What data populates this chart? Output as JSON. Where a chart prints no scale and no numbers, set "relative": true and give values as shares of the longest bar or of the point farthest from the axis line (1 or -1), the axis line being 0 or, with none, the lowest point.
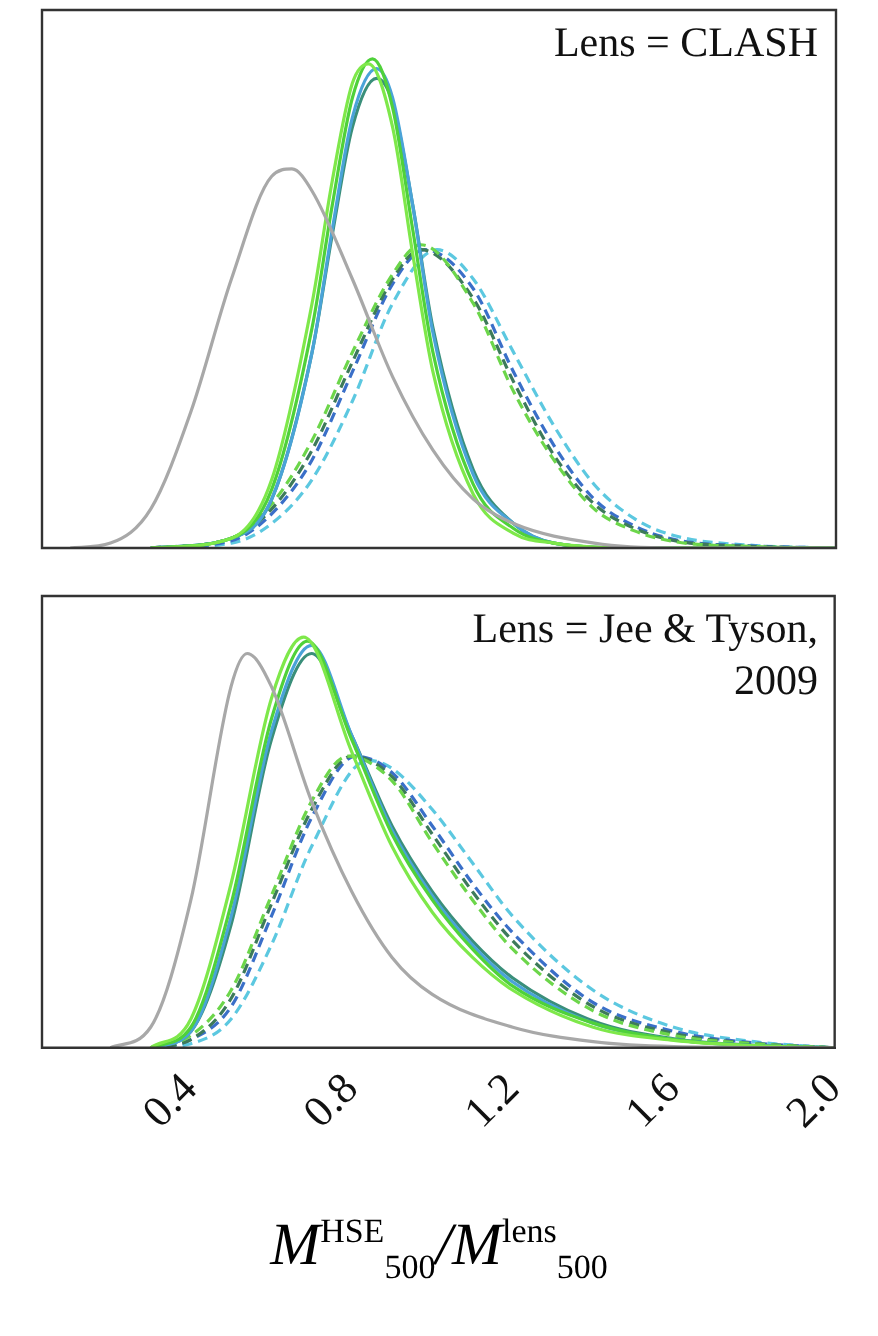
{
  "chart_data": [
    {
      "type": "line",
      "relative": true,
      "annotations": [
        "Lens = CLASH"
      ],
      "xlim": [
        0.03,
        2.0
      ],
      "tick_labels": false,
      "grid": false,
      "legend": false,
      "marker": "none",
      "series": [
        {
          "color": "#a8a8a8",
          "line_style": "solid",
          "x": [
            0.1,
            0.2,
            0.3,
            0.4,
            0.5,
            0.6,
            0.65,
            0.7,
            0.8,
            0.9,
            1.0,
            1.1,
            1.2,
            1.4,
            1.6,
            2.0
          ],
          "values": [
            0,
            0.01,
            0.08,
            0.28,
            0.55,
            0.76,
            0.775,
            0.73,
            0.55,
            0.35,
            0.2,
            0.1,
            0.05,
            0.01,
            0,
            0
          ]
        },
        {
          "color": "#7ee84a",
          "line_style": "solid",
          "x": [
            0.3,
            0.5,
            0.6,
            0.7,
            0.75,
            0.8,
            0.84,
            0.9,
            0.95,
            1.0,
            1.1,
            1.2,
            1.3,
            1.5,
            2.0
          ],
          "values": [
            0,
            0.02,
            0.14,
            0.5,
            0.75,
            0.95,
            0.99,
            0.86,
            0.6,
            0.36,
            0.11,
            0.03,
            0.01,
            0,
            0
          ]
        },
        {
          "color": "#4fd13a",
          "line_style": "solid",
          "x": [
            0.3,
            0.5,
            0.6,
            0.7,
            0.75,
            0.8,
            0.85,
            0.9,
            0.95,
            1.0,
            1.1,
            1.2,
            1.3,
            1.5,
            2.0
          ],
          "values": [
            0,
            0.02,
            0.12,
            0.45,
            0.7,
            0.92,
            1.0,
            0.9,
            0.65,
            0.4,
            0.13,
            0.04,
            0.01,
            0,
            0
          ]
        },
        {
          "color": "#4aa3d8",
          "line_style": "solid",
          "x": [
            0.3,
            0.5,
            0.6,
            0.7,
            0.75,
            0.8,
            0.86,
            0.9,
            0.95,
            1.0,
            1.1,
            1.2,
            1.3,
            1.5,
            2.0
          ],
          "values": [
            0,
            0.02,
            0.1,
            0.4,
            0.65,
            0.88,
            0.98,
            0.92,
            0.7,
            0.44,
            0.15,
            0.05,
            0.01,
            0,
            0
          ]
        },
        {
          "color": "#3a8f7a",
          "line_style": "solid",
          "x": [
            0.3,
            0.5,
            0.6,
            0.7,
            0.75,
            0.8,
            0.86,
            0.9,
            0.95,
            1.0,
            1.1,
            1.2,
            1.3,
            1.5,
            2.0
          ],
          "values": [
            0,
            0.02,
            0.1,
            0.4,
            0.64,
            0.86,
            0.96,
            0.91,
            0.7,
            0.45,
            0.16,
            0.05,
            0.01,
            0,
            0
          ]
        },
        {
          "color": "#6cd64a",
          "line_style": "dashed",
          "x": [
            0.3,
            0.5,
            0.6,
            0.7,
            0.8,
            0.9,
            0.97,
            1.1,
            1.2,
            1.3,
            1.4,
            1.5,
            1.6,
            1.8,
            2.0
          ],
          "values": [
            0,
            0.02,
            0.09,
            0.22,
            0.4,
            0.56,
            0.62,
            0.5,
            0.32,
            0.18,
            0.08,
            0.035,
            0.013,
            0.003,
            0
          ]
        },
        {
          "color": "#3d7a5a",
          "line_style": "dashed",
          "x": [
            0.3,
            0.5,
            0.6,
            0.7,
            0.8,
            0.9,
            0.97,
            1.1,
            1.2,
            1.3,
            1.4,
            1.5,
            1.6,
            1.8,
            2.0
          ],
          "values": [
            0,
            0.02,
            0.08,
            0.2,
            0.38,
            0.55,
            0.61,
            0.51,
            0.34,
            0.19,
            0.09,
            0.04,
            0.015,
            0.003,
            0
          ]
        },
        {
          "color": "#3a6fc8",
          "line_style": "dashed",
          "x": [
            0.3,
            0.5,
            0.6,
            0.7,
            0.8,
            0.9,
            0.98,
            1.1,
            1.2,
            1.3,
            1.4,
            1.5,
            1.6,
            1.8,
            2.0
          ],
          "values": [
            0,
            0.015,
            0.07,
            0.18,
            0.36,
            0.54,
            0.61,
            0.53,
            0.36,
            0.21,
            0.1,
            0.045,
            0.017,
            0.004,
            0
          ]
        },
        {
          "color": "#5cc8e0",
          "line_style": "dashed",
          "x": [
            0.3,
            0.5,
            0.6,
            0.7,
            0.8,
            0.9,
            1.01,
            1.1,
            1.2,
            1.3,
            1.4,
            1.5,
            1.6,
            1.8,
            2.0
          ],
          "values": [
            0,
            0.01,
            0.05,
            0.14,
            0.3,
            0.5,
            0.61,
            0.55,
            0.4,
            0.25,
            0.13,
            0.06,
            0.025,
            0.005,
            0
          ]
        }
      ]
    },
    {
      "type": "line",
      "relative": true,
      "annotations": [
        "Lens = Jee & Tyson, 2009"
      ],
      "xlabel": "M$^{HSE}$$_{500}$/M$^{lens}$$_{500}$",
      "xlim": [
        0.03,
        2.0
      ],
      "xticks": [
        0.4,
        0.8,
        1.2,
        1.6,
        {
          "value": 2.0,
          "label": "2.0"
        }
      ],
      "tick_labels": "x",
      "grid": false,
      "legend": false,
      "marker": "none",
      "series": [
        {
          "color": "#a8a8a8",
          "line_style": "solid",
          "x": [
            0.2,
            0.3,
            0.4,
            0.5,
            0.54,
            0.6,
            0.7,
            0.8,
            0.9,
            1.0,
            1.2,
            1.4,
            1.6,
            2.0
          ],
          "values": [
            0,
            0.05,
            0.36,
            0.88,
            0.96,
            0.88,
            0.6,
            0.38,
            0.22,
            0.13,
            0.05,
            0.015,
            0.003,
            0
          ]
        },
        {
          "color": "#7ee84a",
          "line_style": "solid",
          "x": [
            0.3,
            0.4,
            0.5,
            0.6,
            0.68,
            0.8,
            0.9,
            1.0,
            1.1,
            1.2,
            1.4,
            1.6,
            1.8,
            2.0
          ],
          "values": [
            0,
            0.07,
            0.4,
            0.85,
            1.0,
            0.72,
            0.49,
            0.33,
            0.22,
            0.14,
            0.05,
            0.018,
            0.005,
            0
          ]
        },
        {
          "color": "#4fd13a",
          "line_style": "solid",
          "x": [
            0.3,
            0.4,
            0.5,
            0.6,
            0.69,
            0.8,
            0.9,
            1.0,
            1.1,
            1.2,
            1.4,
            1.6,
            1.8,
            2.0
          ],
          "values": [
            0,
            0.05,
            0.35,
            0.8,
            0.99,
            0.75,
            0.52,
            0.36,
            0.24,
            0.15,
            0.06,
            0.02,
            0.005,
            0
          ]
        },
        {
          "color": "#4aa3d8",
          "line_style": "solid",
          "x": [
            0.3,
            0.4,
            0.5,
            0.6,
            0.7,
            0.8,
            0.9,
            1.0,
            1.1,
            1.2,
            1.4,
            1.6,
            1.8,
            2.0
          ],
          "values": [
            0,
            0.04,
            0.32,
            0.77,
            0.98,
            0.76,
            0.53,
            0.37,
            0.25,
            0.16,
            0.06,
            0.02,
            0.005,
            0
          ]
        },
        {
          "color": "#3a8f7a",
          "line_style": "solid",
          "x": [
            0.3,
            0.4,
            0.5,
            0.6,
            0.7,
            0.8,
            0.9,
            1.0,
            1.1,
            1.2,
            1.4,
            1.6,
            1.8,
            2.0
          ],
          "values": [
            0,
            0.04,
            0.3,
            0.75,
            0.96,
            0.76,
            0.54,
            0.38,
            0.26,
            0.17,
            0.065,
            0.022,
            0.006,
            0
          ]
        },
        {
          "color": "#6cd64a",
          "line_style": "dashed",
          "x": [
            0.3,
            0.4,
            0.5,
            0.6,
            0.7,
            0.79,
            0.9,
            1.0,
            1.1,
            1.2,
            1.4,
            1.6,
            1.8,
            2.0
          ],
          "values": [
            0,
            0.03,
            0.14,
            0.37,
            0.6,
            0.71,
            0.65,
            0.5,
            0.36,
            0.24,
            0.09,
            0.03,
            0.01,
            0
          ]
        },
        {
          "color": "#3d7a5a",
          "line_style": "dashed",
          "x": [
            0.3,
            0.4,
            0.5,
            0.6,
            0.7,
            0.8,
            0.9,
            1.0,
            1.1,
            1.2,
            1.4,
            1.6,
            1.8,
            2.0
          ],
          "values": [
            0,
            0.02,
            0.12,
            0.35,
            0.58,
            0.71,
            0.66,
            0.52,
            0.38,
            0.26,
            0.1,
            0.035,
            0.01,
            0
          ]
        },
        {
          "color": "#3a6fc8",
          "line_style": "dashed",
          "x": [
            0.3,
            0.4,
            0.5,
            0.6,
            0.7,
            0.81,
            0.9,
            1.0,
            1.1,
            1.2,
            1.4,
            1.6,
            1.8,
            2.0
          ],
          "values": [
            0,
            0.02,
            0.1,
            0.32,
            0.56,
            0.71,
            0.67,
            0.54,
            0.4,
            0.28,
            0.11,
            0.04,
            0.012,
            0
          ]
        },
        {
          "color": "#5cc8e0",
          "line_style": "dashed",
          "x": [
            0.3,
            0.4,
            0.5,
            0.6,
            0.7,
            0.84,
            0.9,
            1.0,
            1.1,
            1.2,
            1.4,
            1.6,
            1.8,
            2.0
          ],
          "values": [
            0,
            0.01,
            0.07,
            0.25,
            0.49,
            0.7,
            0.68,
            0.58,
            0.45,
            0.32,
            0.14,
            0.05,
            0.015,
            0
          ]
        }
      ]
    }
  ]
}
